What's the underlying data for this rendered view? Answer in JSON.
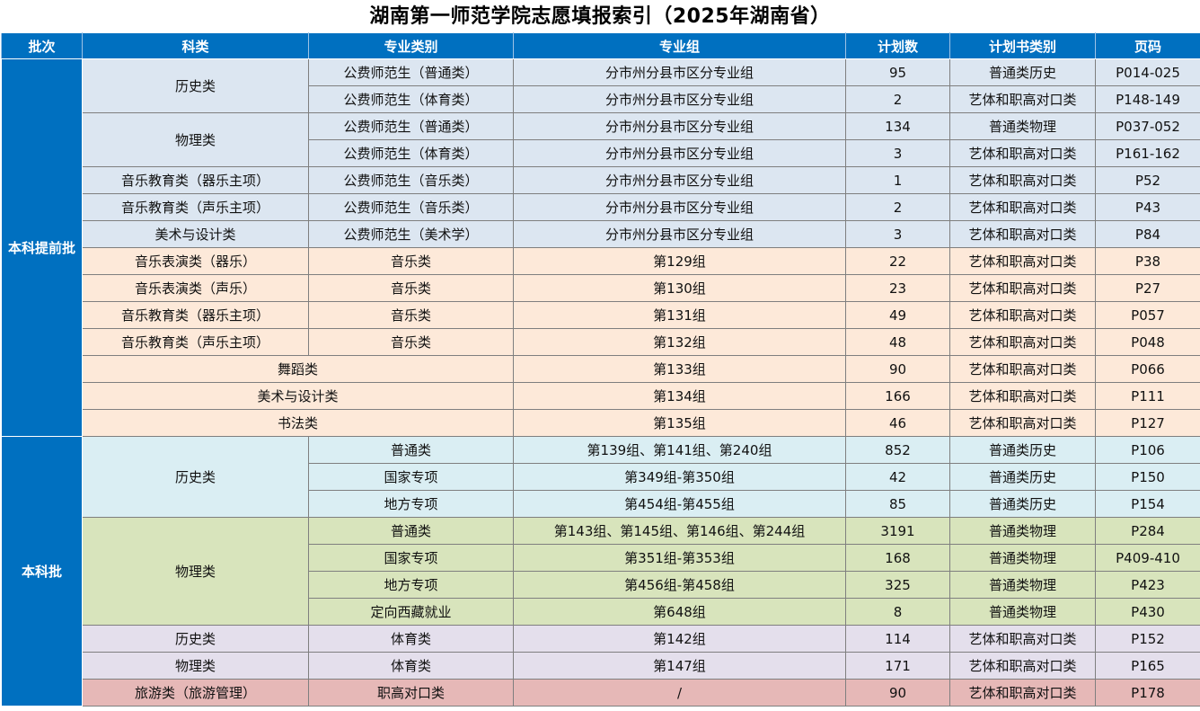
{
  "title": "湖南第一师范学院志愿填报索引（2025年湖南省）",
  "headers": [
    "批次",
    "科类",
    "专业类别",
    "专业组",
    "计划数",
    "计划书类别",
    "页码"
  ],
  "batches": {
    "advance": "本科提前批",
    "regular": "本科批"
  },
  "rows": [
    {
      "category": "历史类",
      "major_type": "公费师范生（普通类）",
      "group": "分市州分县市区分专业组",
      "plan": "95",
      "book": "普通类历史",
      "page": "P014-025"
    },
    {
      "major_type": "公费师范生（体育类）",
      "group": "分市州分县市区分专业组",
      "plan": "2",
      "book": "艺体和职高对口类",
      "page": "P148-149"
    },
    {
      "category": "物理类",
      "major_type": "公费师范生（普通类）",
      "group": "分市州分县市区分专业组",
      "plan": "134",
      "book": "普通类物理",
      "page": "P037-052"
    },
    {
      "major_type": "公费师范生（体育类）",
      "group": "分市州分县市区分专业组",
      "plan": "3",
      "book": "艺体和职高对口类",
      "page": "P161-162"
    },
    {
      "category": "音乐教育类（器乐主项）",
      "major_type": "公费师范生（音乐类）",
      "group": "分市州分县市区分专业组",
      "plan": "1",
      "book": "艺体和职高对口类",
      "page": "P52"
    },
    {
      "category": "音乐教育类（声乐主项）",
      "major_type": "公费师范生（音乐类）",
      "group": "分市州分县市区分专业组",
      "plan": "2",
      "book": "艺体和职高对口类",
      "page": "P43"
    },
    {
      "category": "美术与设计类",
      "major_type": "公费师范生（美术学）",
      "group": "分市州分县市区分专业组",
      "plan": "3",
      "book": "艺体和职高对口类",
      "page": "P84"
    },
    {
      "category": "音乐表演类（器乐）",
      "major_type": "音乐类",
      "group": "第129组",
      "plan": "22",
      "book": "艺体和职高对口类",
      "page": "P38"
    },
    {
      "category": "音乐表演类（声乐）",
      "major_type": "音乐类",
      "group": "第130组",
      "plan": "23",
      "book": "艺体和职高对口类",
      "page": "P27"
    },
    {
      "category": "音乐教育类（器乐主项）",
      "major_type": "音乐类",
      "group": "第131组",
      "plan": "49",
      "book": "艺体和职高对口类",
      "page": "P057"
    },
    {
      "category": "音乐教育类（声乐主项）",
      "major_type": "音乐类",
      "group": "第132组",
      "plan": "48",
      "book": "艺体和职高对口类",
      "page": "P048"
    },
    {
      "category": "舞蹈类",
      "group": "第133组",
      "plan": "90",
      "book": "艺体和职高对口类",
      "page": "P066"
    },
    {
      "category": "美术与设计类",
      "group": "第134组",
      "plan": "166",
      "book": "艺体和职高对口类",
      "page": "P111"
    },
    {
      "category": "书法类",
      "group": "第135组",
      "plan": "46",
      "book": "艺体和职高对口类",
      "page": "P127"
    },
    {
      "category": "历史类",
      "major_type": "普通类",
      "group": "第139组、第141组、第240组",
      "plan": "852",
      "book": "普通类历史",
      "page": "P106"
    },
    {
      "major_type": "国家专项",
      "group": "第349组-第350组",
      "plan": "42",
      "book": "普通类历史",
      "page": "P150"
    },
    {
      "major_type": "地方专项",
      "group": "第454组-第455组",
      "plan": "85",
      "book": "普通类历史",
      "page": "P154"
    },
    {
      "category": "物理类",
      "major_type": "普通类",
      "group": "第143组、第145组、第146组、第244组",
      "plan": "3191",
      "book": "普通类物理",
      "page": "P284"
    },
    {
      "major_type": "国家专项",
      "group": "第351组-第353组",
      "plan": "168",
      "book": "普通类物理",
      "page": "P409-410"
    },
    {
      "major_type": "地方专项",
      "group": "第456组-第458组",
      "plan": "325",
      "book": "普通类物理",
      "page": "P423"
    },
    {
      "major_type": "定向西藏就业",
      "group": "第648组",
      "plan": "8",
      "book": "普通类物理",
      "page": "P430"
    },
    {
      "category": "历史类",
      "major_type": "体育类",
      "group": "第142组",
      "plan": "114",
      "book": "艺体和职高对口类",
      "page": "P152"
    },
    {
      "category": "物理类",
      "major_type": "体育类",
      "group": "第147组",
      "plan": "171",
      "book": "艺体和职高对口类",
      "page": "P165"
    },
    {
      "category": "旅游类（旅游管理）",
      "major_type": "职高对口类",
      "group": "/",
      "plan": "90",
      "book": "艺体和职高对口类",
      "page": "P178"
    }
  ]
}
